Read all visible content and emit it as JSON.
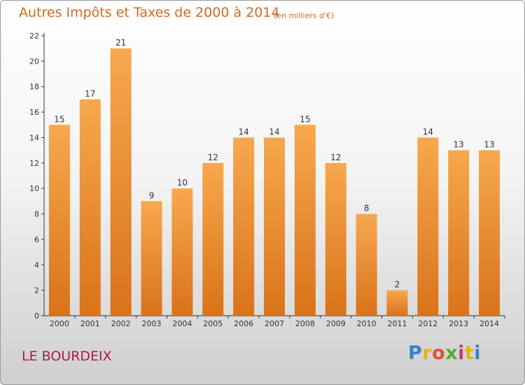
{
  "chart_data": {
    "type": "bar",
    "title": "Autres Impôts et Taxes de 2000 à 2014",
    "subtitle": "(en milliers d'€)",
    "categories": [
      "2000",
      "2001",
      "2002",
      "2003",
      "2004",
      "2005",
      "2006",
      "2007",
      "2008",
      "2009",
      "2010",
      "2011",
      "2012",
      "2013",
      "2014"
    ],
    "values": [
      15,
      17,
      21,
      9,
      10,
      12,
      14,
      14,
      15,
      12,
      8,
      2,
      14,
      13,
      13
    ],
    "ylim": [
      0,
      22
    ],
    "yticks": [
      0,
      2,
      4,
      6,
      8,
      10,
      12,
      14,
      16,
      18,
      20,
      22
    ],
    "grid": false,
    "bar_color": "#f0932b"
  },
  "footer": {
    "place": "LE BOURDEIX",
    "logo_letters": [
      "P",
      "r",
      "o",
      "x",
      "i",
      "t",
      "i"
    ],
    "logo_colors": [
      "#3a7fc9",
      "#e8b20f",
      "#d9532f",
      "#5aa832",
      "#c33a7a",
      "#e8b20f",
      "#3a7fc9"
    ]
  }
}
